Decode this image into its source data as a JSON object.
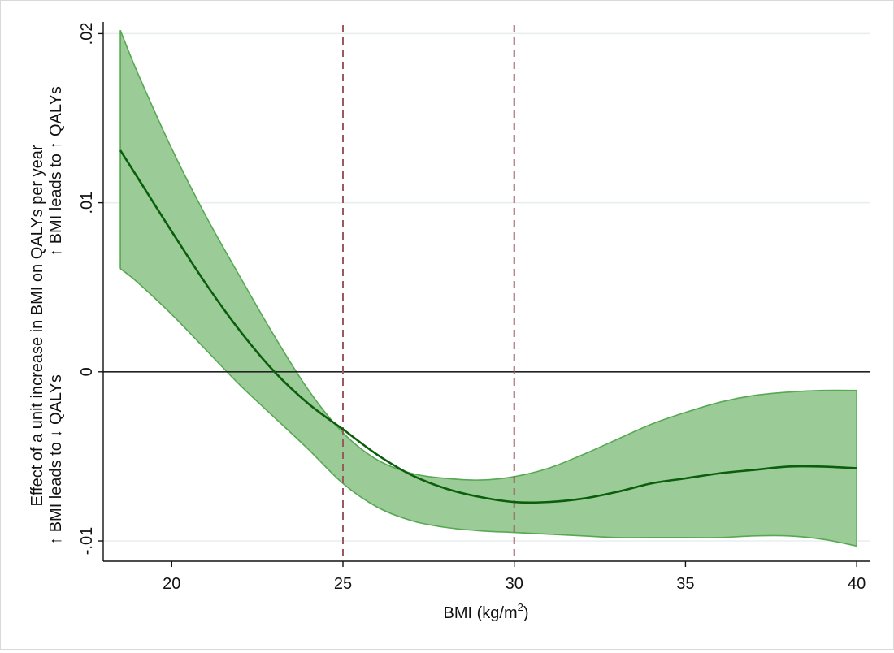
{
  "chart_data": {
    "type": "area",
    "xlabel": "BMI (kg/m",
    "xlabel_superscript": "2",
    "xlabel_suffix": ")",
    "ylabel_line1": "Effect of a unit increase in BMI on QALYs per year",
    "ylabel_line2_left": "↑ BMI leads to ↓ QALYs",
    "ylabel_line2_right": "↑ BMI leads to ↑ QALYs",
    "xlim": [
      18.0,
      40.4
    ],
    "ylim": [
      -0.0112,
      0.0205
    ],
    "x_ticks": [
      {
        "value": 20,
        "label": "20"
      },
      {
        "value": 25,
        "label": "25"
      },
      {
        "value": 30,
        "label": "30"
      },
      {
        "value": 35,
        "label": "35"
      },
      {
        "value": 40,
        "label": "40"
      }
    ],
    "y_ticks": [
      {
        "value": -0.01,
        "label": "-.01"
      },
      {
        "value": 0,
        "label": "0"
      },
      {
        "value": 0.01,
        "label": ".01"
      },
      {
        "value": 0.02,
        "label": ".02"
      }
    ],
    "reference_lines": {
      "horizontal": [
        0
      ],
      "vertical": [
        25,
        30
      ]
    },
    "grid": "horizontal",
    "colors": {
      "line": "#0b5e0b",
      "band_fill": "#9bcc98",
      "band_edge": "#57a852",
      "zero_line": "#222222",
      "ref_line": "#9a5a62",
      "grid": "#e8eeee",
      "axis": "#111111"
    },
    "series": [
      {
        "x": [
          18.5,
          19,
          20,
          21,
          22,
          23,
          24,
          25,
          26,
          27,
          28,
          29,
          30,
          31,
          32,
          33,
          34,
          35,
          36,
          37,
          38,
          39,
          40
        ],
        "estimate": [
          0.0131,
          0.0115,
          0.0083,
          0.0052,
          0.0024,
          0.0,
          -0.0019,
          -0.0034,
          -0.0049,
          -0.0061,
          -0.0069,
          -0.0074,
          -0.0077,
          -0.0077,
          -0.0075,
          -0.0071,
          -0.0066,
          -0.0063,
          -0.006,
          -0.0058,
          -0.0056,
          -0.0056,
          -0.0057
        ],
        "upper": [
          0.0202,
          0.0177,
          0.0132,
          0.0092,
          0.0056,
          0.0021,
          -0.0011,
          -0.0036,
          -0.0052,
          -0.006,
          -0.0063,
          -0.0064,
          -0.0062,
          -0.0057,
          -0.0049,
          -0.004,
          -0.0031,
          -0.0024,
          -0.0018,
          -0.0014,
          -0.0012,
          -0.0011,
          -0.0011
        ],
        "lower": [
          0.0061,
          0.0053,
          0.0034,
          0.0013,
          -0.0008,
          -0.0027,
          -0.0046,
          -0.0066,
          -0.008,
          -0.0088,
          -0.0092,
          -0.0094,
          -0.0095,
          -0.0096,
          -0.0097,
          -0.0098,
          -0.0098,
          -0.0098,
          -0.0098,
          -0.0097,
          -0.0097,
          -0.0099,
          -0.0103
        ]
      }
    ]
  }
}
